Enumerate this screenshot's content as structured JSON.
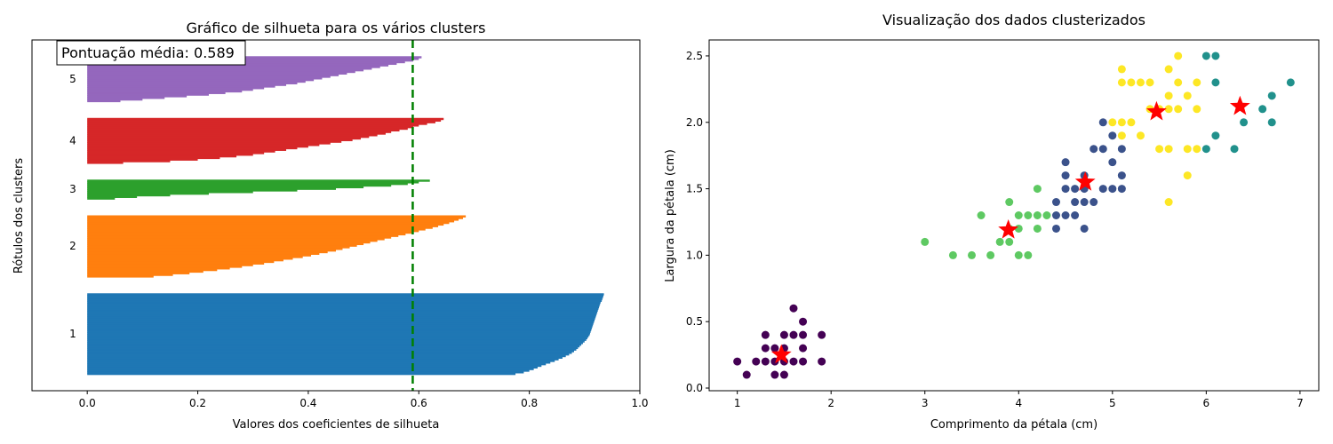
{
  "chart_data": [
    {
      "type": "bar",
      "subtype": "silhouette-plot",
      "title": "Gráfico de silhueta para os vários clusters",
      "xlabel": "Valores dos coeficientes de silhueta",
      "ylabel": "Rótulos dos clusters",
      "xlim": [
        -0.1,
        1.0
      ],
      "xticks": [
        "0.0",
        "0.2",
        "0.4",
        "0.6",
        "0.8",
        "1.0"
      ],
      "grid": false,
      "average_score": 0.589,
      "average_label": "Pontuação média: 0.589",
      "clusters": [
        {
          "label": "1",
          "color": "#1f77b4",
          "size": 50,
          "values": [
            0.935,
            0.934,
            0.933,
            0.932,
            0.931,
            0.929,
            0.928,
            0.927,
            0.926,
            0.925,
            0.924,
            0.923,
            0.922,
            0.921,
            0.92,
            0.919,
            0.918,
            0.917,
            0.916,
            0.915,
            0.914,
            0.913,
            0.912,
            0.911,
            0.91,
            0.909,
            0.907,
            0.905,
            0.903,
            0.9,
            0.897,
            0.894,
            0.891,
            0.888,
            0.885,
            0.881,
            0.877,
            0.872,
            0.866,
            0.86,
            0.853,
            0.846,
            0.838,
            0.83,
            0.822,
            0.815,
            0.808,
            0.8,
            0.79,
            0.775
          ]
        },
        {
          "label": "2",
          "color": "#ff7f0e",
          "size": 38,
          "values": [
            0.685,
            0.68,
            0.672,
            0.664,
            0.655,
            0.645,
            0.635,
            0.625,
            0.612,
            0.6,
            0.588,
            0.576,
            0.563,
            0.55,
            0.538,
            0.525,
            0.512,
            0.5,
            0.488,
            0.475,
            0.462,
            0.45,
            0.435,
            0.42,
            0.405,
            0.39,
            0.372,
            0.355,
            0.338,
            0.32,
            0.3,
            0.28,
            0.258,
            0.235,
            0.21,
            0.185,
            0.155,
            0.12
          ]
        },
        {
          "label": "3",
          "color": "#2ca02c",
          "size": 12,
          "values": [
            0.62,
            0.6,
            0.58,
            0.55,
            0.5,
            0.45,
            0.38,
            0.3,
            0.22,
            0.15,
            0.09,
            0.05
          ]
        },
        {
          "label": "4",
          "color": "#d62728",
          "size": 28,
          "values": [
            0.645,
            0.64,
            0.63,
            0.615,
            0.6,
            0.59,
            0.58,
            0.565,
            0.55,
            0.54,
            0.525,
            0.51,
            0.495,
            0.48,
            0.46,
            0.44,
            0.42,
            0.4,
            0.38,
            0.36,
            0.34,
            0.32,
            0.3,
            0.27,
            0.24,
            0.2,
            0.15,
            0.065
          ]
        },
        {
          "label": "5",
          "color": "#9467bd",
          "size": 28,
          "values": [
            0.605,
            0.6,
            0.59,
            0.575,
            0.56,
            0.545,
            0.53,
            0.515,
            0.5,
            0.485,
            0.47,
            0.455,
            0.44,
            0.425,
            0.41,
            0.395,
            0.38,
            0.36,
            0.34,
            0.32,
            0.3,
            0.28,
            0.25,
            0.22,
            0.18,
            0.14,
            0.1,
            0.06
          ]
        }
      ]
    },
    {
      "type": "scatter",
      "title": "Visualização dos dados clusterizados",
      "xlabel": "Comprimento da pétala (cm)",
      "ylabel": "Largura da pétala (cm)",
      "xlim": [
        0.7,
        7.2
      ],
      "ylim": [
        -0.02,
        2.62
      ],
      "xticks": [
        1,
        2,
        3,
        4,
        5,
        6,
        7
      ],
      "yticks": [
        "0.0",
        "0.5",
        "1.0",
        "1.5",
        "2.0",
        "2.5"
      ],
      "grid": false,
      "series": [
        {
          "color": "#440154",
          "points": [
            [
              1.0,
              0.2
            ],
            [
              1.1,
              0.1
            ],
            [
              1.2,
              0.2
            ],
            [
              1.3,
              0.2
            ],
            [
              1.3,
              0.3
            ],
            [
              1.3,
              0.4
            ],
            [
              1.4,
              0.1
            ],
            [
              1.4,
              0.2
            ],
            [
              1.4,
              0.3
            ],
            [
              1.5,
              0.1
            ],
            [
              1.5,
              0.2
            ],
            [
              1.5,
              0.3
            ],
            [
              1.5,
              0.4
            ],
            [
              1.6,
              0.2
            ],
            [
              1.6,
              0.4
            ],
            [
              1.6,
              0.6
            ],
            [
              1.7,
              0.2
            ],
            [
              1.7,
              0.3
            ],
            [
              1.7,
              0.4
            ],
            [
              1.7,
              0.5
            ],
            [
              1.9,
              0.2
            ],
            [
              1.9,
              0.4
            ]
          ]
        },
        {
          "color": "#3b528b",
          "points": [
            [
              4.4,
              1.2
            ],
            [
              4.4,
              1.3
            ],
            [
              4.4,
              1.4
            ],
            [
              4.5,
              1.3
            ],
            [
              4.5,
              1.5
            ],
            [
              4.5,
              1.6
            ],
            [
              4.5,
              1.7
            ],
            [
              4.6,
              1.3
            ],
            [
              4.6,
              1.4
            ],
            [
              4.6,
              1.5
            ],
            [
              4.7,
              1.2
            ],
            [
              4.7,
              1.4
            ],
            [
              4.7,
              1.5
            ],
            [
              4.7,
              1.6
            ],
            [
              4.8,
              1.4
            ],
            [
              4.8,
              1.8
            ],
            [
              4.9,
              1.5
            ],
            [
              4.9,
              1.8
            ],
            [
              4.9,
              2.0
            ],
            [
              5.0,
              1.5
            ],
            [
              5.0,
              1.7
            ],
            [
              5.0,
              1.9
            ],
            [
              5.1,
              1.5
            ],
            [
              5.1,
              1.6
            ],
            [
              5.1,
              1.8
            ]
          ]
        },
        {
          "color": "#21918c",
          "points": [
            [
              6.0,
              1.8
            ],
            [
              6.0,
              2.5
            ],
            [
              6.1,
              1.9
            ],
            [
              6.1,
              2.3
            ],
            [
              6.1,
              2.5
            ],
            [
              6.3,
              1.8
            ],
            [
              6.4,
              2.0
            ],
            [
              6.6,
              2.1
            ],
            [
              6.7,
              2.0
            ],
            [
              6.7,
              2.2
            ],
            [
              6.9,
              2.3
            ]
          ]
        },
        {
          "color": "#5ec962",
          "points": [
            [
              3.0,
              1.1
            ],
            [
              3.3,
              1.0
            ],
            [
              3.5,
              1.0
            ],
            [
              3.6,
              1.3
            ],
            [
              3.7,
              1.0
            ],
            [
              3.8,
              1.1
            ],
            [
              3.9,
              1.1
            ],
            [
              3.9,
              1.4
            ],
            [
              3.9,
              1.2
            ],
            [
              4.0,
              1.0
            ],
            [
              4.0,
              1.2
            ],
            [
              4.0,
              1.3
            ],
            [
              4.1,
              1.0
            ],
            [
              4.1,
              1.3
            ],
            [
              4.2,
              1.2
            ],
            [
              4.2,
              1.3
            ],
            [
              4.2,
              1.5
            ],
            [
              4.3,
              1.3
            ]
          ]
        },
        {
          "color": "#fde725",
          "points": [
            [
              5.0,
              2.0
            ],
            [
              5.1,
              1.9
            ],
            [
              5.1,
              2.0
            ],
            [
              5.1,
              2.3
            ],
            [
              5.1,
              2.4
            ],
            [
              5.2,
              2.0
            ],
            [
              5.2,
              2.3
            ],
            [
              5.3,
              1.9
            ],
            [
              5.3,
              2.3
            ],
            [
              5.4,
              2.1
            ],
            [
              5.4,
              2.3
            ],
            [
              5.5,
              1.8
            ],
            [
              5.5,
              2.1
            ],
            [
              5.6,
              1.4
            ],
            [
              5.6,
              1.8
            ],
            [
              5.6,
              2.1
            ],
            [
              5.6,
              2.2
            ],
            [
              5.6,
              2.4
            ],
            [
              5.7,
              2.1
            ],
            [
              5.7,
              2.3
            ],
            [
              5.7,
              2.5
            ],
            [
              5.8,
              1.6
            ],
            [
              5.8,
              1.8
            ],
            [
              5.8,
              2.2
            ],
            [
              5.9,
              1.8
            ],
            [
              5.9,
              2.1
            ],
            [
              5.9,
              2.3
            ]
          ]
        }
      ],
      "centroids": {
        "color": "#ff0000",
        "marker": "star",
        "points": [
          [
            1.47,
            0.25
          ],
          [
            3.89,
            1.19
          ],
          [
            4.71,
            1.55
          ],
          [
            5.47,
            2.08
          ],
          [
            6.36,
            2.12
          ]
        ]
      }
    }
  ]
}
